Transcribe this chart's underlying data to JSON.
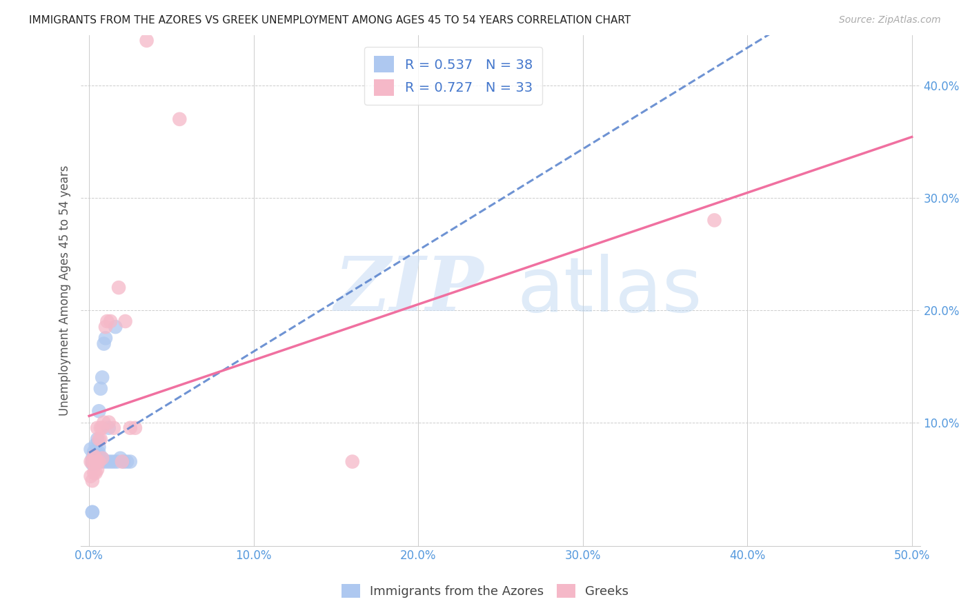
{
  "title": "IMMIGRANTS FROM THE AZORES VS GREEK UNEMPLOYMENT AMONG AGES 45 TO 54 YEARS CORRELATION CHART",
  "source": "Source: ZipAtlas.com",
  "ylabel": "Unemployment Among Ages 45 to 54 years",
  "xlim": [
    -0.005,
    0.505
  ],
  "ylim": [
    -0.01,
    0.445
  ],
  "xticks": [
    0.0,
    0.1,
    0.2,
    0.3,
    0.4,
    0.5
  ],
  "yticks": [
    0.1,
    0.2,
    0.3,
    0.4
  ],
  "xticklabels": [
    "0.0%",
    "10.0%",
    "20.0%",
    "30.0%",
    "40.0%",
    "50.0%"
  ],
  "yticklabels": [
    "10.0%",
    "20.0%",
    "30.0%",
    "40.0%"
  ],
  "azores_R": 0.537,
  "azores_N": 38,
  "greek_R": 0.727,
  "greek_N": 33,
  "azores_color": "#aec8f0",
  "greek_color": "#f5b8c8",
  "azores_line_color": "#5580cc",
  "greek_line_color": "#f070a0",
  "legend_label_azores": "Immigrants from the Azores",
  "legend_label_greek": "Greeks",
  "azores_x": [
    0.001,
    0.002,
    0.002,
    0.002,
    0.003,
    0.003,
    0.003,
    0.003,
    0.004,
    0.004,
    0.004,
    0.005,
    0.005,
    0.005,
    0.005,
    0.006,
    0.006,
    0.007,
    0.007,
    0.008,
    0.008,
    0.009,
    0.009,
    0.01,
    0.011,
    0.012,
    0.013,
    0.015,
    0.016,
    0.017,
    0.019,
    0.021,
    0.023,
    0.025,
    0.006,
    0.003,
    0.002,
    0.002
  ],
  "azores_y": [
    0.076,
    0.065,
    0.068,
    0.063,
    0.072,
    0.067,
    0.071,
    0.074,
    0.068,
    0.072,
    0.08,
    0.072,
    0.065,
    0.068,
    0.085,
    0.073,
    0.078,
    0.065,
    0.13,
    0.14,
    0.068,
    0.17,
    0.065,
    0.175,
    0.065,
    0.095,
    0.065,
    0.065,
    0.185,
    0.065,
    0.068,
    0.065,
    0.065,
    0.065,
    0.11,
    0.065,
    0.02,
    0.02
  ],
  "greek_x": [
    0.001,
    0.001,
    0.002,
    0.002,
    0.003,
    0.003,
    0.003,
    0.004,
    0.004,
    0.005,
    0.005,
    0.005,
    0.006,
    0.006,
    0.007,
    0.007,
    0.008,
    0.008,
    0.009,
    0.01,
    0.011,
    0.012,
    0.013,
    0.015,
    0.018,
    0.02,
    0.022,
    0.025,
    0.028,
    0.035,
    0.055,
    0.38,
    0.16
  ],
  "greek_y": [
    0.065,
    0.052,
    0.048,
    0.065,
    0.055,
    0.062,
    0.07,
    0.055,
    0.068,
    0.058,
    0.065,
    0.095,
    0.085,
    0.065,
    0.095,
    0.085,
    0.068,
    0.095,
    0.1,
    0.185,
    0.19,
    0.1,
    0.19,
    0.095,
    0.22,
    0.065,
    0.19,
    0.095,
    0.095,
    0.44,
    0.37,
    0.28,
    0.065
  ]
}
